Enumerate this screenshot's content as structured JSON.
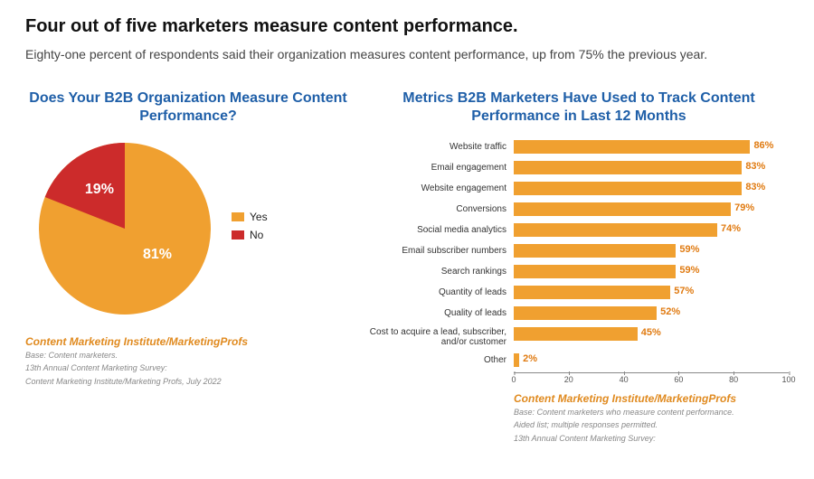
{
  "headline": "Four out of five marketers measure content performance.",
  "subhead": "Eighty-one percent of respondents said their organization measures content performance, up from 75% the previous year.",
  "colors": {
    "yes": "#f0a030",
    "no": "#cc2b2b",
    "title": "#1f5fa8",
    "bar_value": "#e07b12",
    "source": "#e08a1f"
  },
  "pie": {
    "title": "Does Your B2B Organization Measure Content Performance?",
    "type": "pie",
    "slices": [
      {
        "label": "Yes",
        "value": 81,
        "color": "#f0a030"
      },
      {
        "label": "No",
        "value": 19,
        "color": "#cc2b2b"
      }
    ],
    "pct_yes": "81%",
    "pct_no": "19%",
    "legend_yes": "Yes",
    "legend_no": "No",
    "source": "Content Marketing Institute/MarketingProfs",
    "foot1": "Base: Content marketers.",
    "foot2": "13th Annual Content Marketing Survey:",
    "foot3": "Content Marketing Institute/Marketing Profs, July 2022"
  },
  "bars": {
    "title": "Metrics B2B Marketers Have Used to Track Content Performance in Last 12 Months",
    "type": "bar",
    "xmax": 100,
    "xtick_step": 20,
    "ticks": {
      "t0": "0",
      "t20": "20",
      "t40": "40",
      "t60": "60",
      "t80": "80",
      "t100": "100"
    },
    "bar_color": "#f0a030",
    "items": [
      {
        "label": "Website traffic",
        "value": 86,
        "display": "86%"
      },
      {
        "label": "Email engagement",
        "value": 83,
        "display": "83%"
      },
      {
        "label": "Website engagement",
        "value": 83,
        "display": "83%"
      },
      {
        "label": "Conversions",
        "value": 79,
        "display": "79%"
      },
      {
        "label": "Social media analytics",
        "value": 74,
        "display": "74%"
      },
      {
        "label": "Email subscriber numbers",
        "value": 59,
        "display": "59%"
      },
      {
        "label": "Search rankings",
        "value": 59,
        "display": "59%"
      },
      {
        "label": "Quantity of leads",
        "value": 57,
        "display": "57%"
      },
      {
        "label": "Quality of leads",
        "value": 52,
        "display": "52%"
      },
      {
        "label": "Cost to acquire a lead, subscriber, and/or customer",
        "value": 45,
        "display": "45%"
      },
      {
        "label": "Other",
        "value": 2,
        "display": "2%"
      }
    ],
    "source": "Content Marketing Institute/MarketingProfs",
    "foot1": "Base: Content marketers who measure content performance.",
    "foot2": "Aided list; multiple responses permitted.",
    "foot3": "13th Annual Content Marketing Survey:"
  }
}
